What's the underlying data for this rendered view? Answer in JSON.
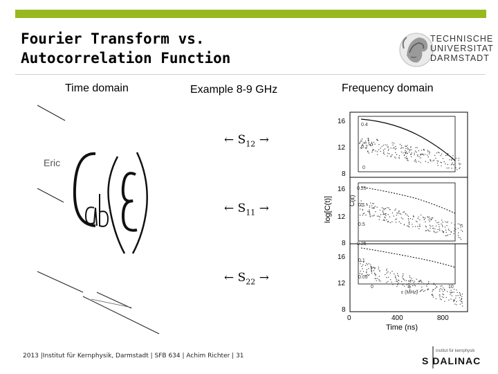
{
  "header": {
    "title": "Fourier Transform vs.\nAutocorrelation Function",
    "accent_color": "#99b81f"
  },
  "logo": {
    "text": "TECHNISCHE\nUNIVERSITAT\nDARMSTADT",
    "icon": "tud-athena-seal"
  },
  "labels": {
    "time_domain": "Time domain",
    "example": "Example 8-9 GHz",
    "frequency_domain": "Frequency domain"
  },
  "sparams": [
    {
      "arrow_left": "←",
      "name": "S",
      "sub": "12",
      "arrow_right": "→"
    },
    {
      "arrow_left": "←",
      "name": "S",
      "sub": "11",
      "arrow_right": "→"
    },
    {
      "arrow_left": "←",
      "name": "S",
      "sub": "22",
      "arrow_right": "→"
    }
  ],
  "left_art": {
    "formula_text": "Cab(ε)",
    "partial_word": "Eric"
  },
  "plot": {
    "y_ticks_panels": [
      [
        "16",
        "12",
        "8"
      ],
      [
        "16",
        "12",
        "8"
      ],
      [
        "16",
        "12",
        "8"
      ]
    ],
    "ylabel": "log[C(t)]",
    "xlabel": "Time (ns)",
    "x_ticks": [
      "0",
      "400",
      "800"
    ],
    "inset_ylabel": "C(ε)",
    "inset_xlabel": "ε (MHz)",
    "inset_ticks": [
      [
        "0.4",
        "0.2",
        "0"
      ],
      [
        "0.25",
        "0.1",
        "0.5"
      ],
      [
        "0.25",
        "0.1",
        "0.05"
      ]
    ],
    "inset_x_ticks": [
      "0",
      "5",
      "10"
    ]
  },
  "footer": {
    "text": "2013 |Institut für Kernphysik, Darmstadt  |  SFB 634 | Achim Richter | 31"
  },
  "sdalinac": {
    "text": "S DALINAC",
    "subtext": "institut für kernphysik"
  }
}
